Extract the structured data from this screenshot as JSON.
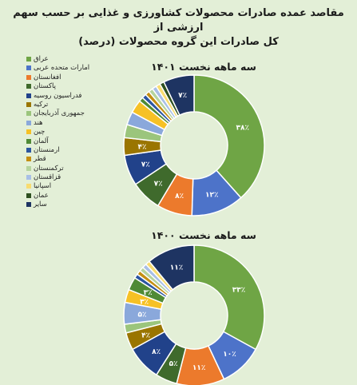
{
  "header": {
    "title_line1": "مقاصد عمده صادرات محصولات کشاورزی و غذایی بر حسب سهم ارزشی از",
    "title_line2": "کل صادرات این گروه محصولات (درصد)"
  },
  "legend": [
    {
      "name": "عراق",
      "color": "#6fa545"
    },
    {
      "name": "امارات متحده عربی",
      "color": "#4d73c9"
    },
    {
      "name": "افغانستان",
      "color": "#ec7a2c"
    },
    {
      "name": "پاکستان",
      "color": "#3f6a2c"
    },
    {
      "name": "فدراسیون روسیه",
      "color": "#21428a"
    },
    {
      "name": "ترکیه",
      "color": "#9a7500"
    },
    {
      "name": "جمهوری آذربایجان",
      "color": "#9bc57c"
    },
    {
      "name": "هند",
      "color": "#8aa8db"
    },
    {
      "name": "چین",
      "color": "#f6c125"
    },
    {
      "name": "آلمان",
      "color": "#4f8a35"
    },
    {
      "name": "ارمنستان",
      "color": "#2b55a0"
    },
    {
      "name": "قطر",
      "color": "#c48f12"
    },
    {
      "name": "ترکمنستان",
      "color": "#b5d49e"
    },
    {
      "name": "قزاقستان",
      "color": "#a8bfe6"
    },
    {
      "name": "اسپانیا",
      "color": "#f8dc70"
    },
    {
      "name": "عمان",
      "color": "#2e5020"
    },
    {
      "name": "سایر",
      "color": "#1e3462"
    }
  ],
  "chart_data": [
    {
      "type": "pie",
      "title": "سه ماهه نخست ۱۴۰۱",
      "categories": [
        "عراق",
        "امارات متحده عربی",
        "افغانستان",
        "پاکستان",
        "فدراسیون روسیه",
        "ترکیه",
        "جمهوری آذربایجان",
        "هند",
        "چین",
        "آلمان",
        "ارمنستان",
        "قطر",
        "ترکمنستان",
        "قزاقستان",
        "اسپانیا",
        "عمان",
        "سایر"
      ],
      "values": [
        38,
        12,
        8,
        7,
        7,
        4,
        3,
        3,
        3,
        1,
        1,
        1,
        1,
        1,
        1,
        1,
        7
      ],
      "data_labels": [
        "۳۸٪",
        "۱۲٪",
        "۸٪",
        "۷٪",
        "۷٪",
        "۴٪",
        "",
        "",
        "",
        "",
        "",
        "",
        "",
        "",
        "",
        "",
        "۷٪"
      ]
    },
    {
      "type": "pie",
      "title": "سه ماهه نخست ۱۴۰۰",
      "categories": [
        "عراق",
        "امارات متحده عربی",
        "افغانستان",
        "پاکستان",
        "فدراسیون روسیه",
        "ترکیه",
        "جمهوری آذربایجان",
        "هند",
        "چین",
        "آلمان",
        "ارمنستان",
        "قطر",
        "ترکمنستان",
        "قزاقستان",
        "اسپانیا",
        "عمان",
        "سایر"
      ],
      "values": [
        33,
        10,
        11,
        5,
        8,
        4,
        2,
        5,
        3,
        3,
        1,
        1,
        1,
        1,
        1,
        0,
        11
      ],
      "data_labels": [
        "۳۳٪",
        "۱۰٪",
        "۱۱٪",
        "۵٪",
        "۸٪",
        "۴٪",
        "",
        "۵٪",
        "۳٪",
        "۳٪",
        "",
        "",
        "",
        "",
        "",
        "",
        "۱۱٪"
      ]
    }
  ]
}
